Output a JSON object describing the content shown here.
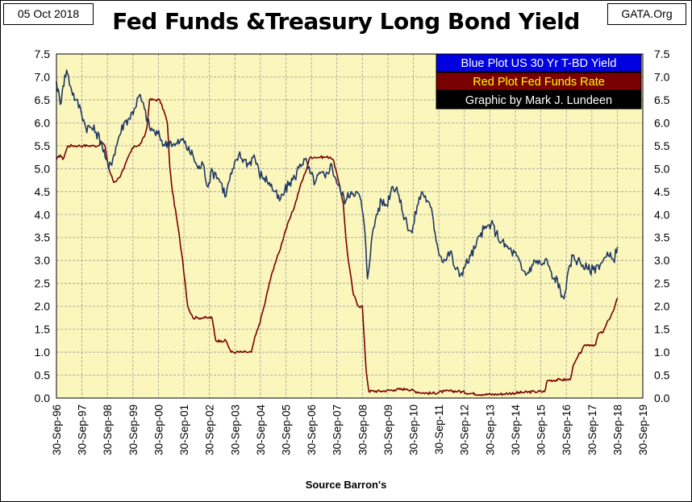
{
  "header": {
    "date": "05 Oct 2018",
    "brand": "GATA.Org"
  },
  "chart_data": {
    "type": "line",
    "title": "Fed Funds &Treasury Long Bond Yield",
    "xlabel": "Source Barron's",
    "ylabel": "",
    "ylim": [
      0,
      7.5
    ],
    "yticks": [
      "0.0",
      "0.5",
      "1.0",
      "1.5",
      "2.0",
      "2.5",
      "3.0",
      "3.5",
      "4.0",
      "4.5",
      "5.0",
      "5.5",
      "6.0",
      "6.5",
      "7.0",
      "7.5"
    ],
    "xlim": [
      1996.75,
      2019.75
    ],
    "xticks": [
      "30-Sep-96",
      "30-Sep-97",
      "30-Sep-98",
      "30-Sep-99",
      "30-Sep-00",
      "30-Sep-01",
      "30-Sep-02",
      "30-Sep-03",
      "30-Sep-04",
      "30-Sep-05",
      "30-Sep-06",
      "30-Sep-07",
      "30-Sep-08",
      "30-Sep-09",
      "30-Sep-10",
      "30-Sep-11",
      "30-Sep-12",
      "30-Sep-13",
      "30-Sep-14",
      "30-Sep-15",
      "30-Sep-16",
      "30-Sep-17",
      "30-Sep-18",
      "30-Sep-19"
    ],
    "grid": true,
    "background": "#fbf6bc",
    "legend": [
      {
        "text": "Blue Plot  US 30 Yr T-BD Yield",
        "bg": "#0000e0",
        "fg": "#ffffff"
      },
      {
        "text": "Red Plot Fed Funds Rate",
        "bg": "#7a0000",
        "fg": "#ffff00"
      },
      {
        "text": "Graphic by Mark J. Lundeen",
        "bg": "#000000",
        "fg": "#ffffff"
      }
    ],
    "series": [
      {
        "name": "US 30 Yr T-BD Yield",
        "color": "#1f3864",
        "x": [
          1996.75,
          1996.9,
          1997.0,
          1997.15,
          1997.3,
          1997.5,
          1997.7,
          1997.9,
          1998.1,
          1998.3,
          1998.5,
          1998.7,
          1998.8,
          1999.0,
          1999.2,
          1999.4,
          1999.6,
          1999.8,
          2000.0,
          2000.2,
          2000.4,
          2000.6,
          2000.8,
          2001.0,
          2001.2,
          2001.4,
          2001.6,
          2001.8,
          2001.9,
          2002.1,
          2002.3,
          2002.5,
          2002.7,
          2002.8,
          2003.0,
          2003.2,
          2003.4,
          2003.5,
          2003.7,
          2003.9,
          2004.1,
          2004.3,
          2004.5,
          2004.7,
          2004.9,
          2005.1,
          2005.3,
          2005.5,
          2005.7,
          2005.9,
          2006.1,
          2006.3,
          2006.5,
          2006.7,
          2006.9,
          2007.1,
          2007.3,
          2007.5,
          2007.7,
          2007.9,
          2008.1,
          2008.3,
          2008.5,
          2008.7,
          2008.85,
          2008.95,
          2009.1,
          2009.3,
          2009.5,
          2009.7,
          2009.9,
          2010.1,
          2010.3,
          2010.5,
          2010.7,
          2010.9,
          2011.1,
          2011.3,
          2011.5,
          2011.6,
          2011.8,
          2012.0,
          2012.2,
          2012.4,
          2012.6,
          2012.8,
          2013.0,
          2013.2,
          2013.4,
          2013.6,
          2013.8,
          2014.0,
          2014.2,
          2014.4,
          2014.6,
          2014.8,
          2015.0,
          2015.2,
          2015.4,
          2015.6,
          2015.8,
          2016.0,
          2016.2,
          2016.4,
          2016.55,
          2016.7,
          2016.9,
          2017.0,
          2017.2,
          2017.4,
          2017.6,
          2017.8,
          2018.0,
          2018.2,
          2018.4,
          2018.6,
          2018.76
        ],
        "y": [
          6.9,
          6.4,
          6.8,
          7.15,
          6.8,
          6.5,
          6.3,
          5.9,
          5.9,
          5.8,
          5.6,
          5.2,
          5.0,
          5.3,
          5.7,
          6.0,
          6.1,
          6.3,
          6.6,
          6.3,
          5.9,
          5.8,
          5.7,
          5.5,
          5.6,
          5.5,
          5.6,
          5.6,
          5.4,
          5.3,
          5.0,
          5.1,
          4.6,
          4.9,
          4.9,
          4.7,
          4.4,
          4.7,
          5.0,
          5.3,
          5.2,
          5.1,
          5.3,
          4.9,
          4.8,
          4.7,
          4.5,
          4.3,
          4.5,
          4.7,
          4.8,
          5.1,
          5.2,
          4.9,
          4.7,
          4.9,
          4.8,
          5.1,
          4.8,
          4.5,
          4.3,
          4.5,
          4.5,
          4.3,
          3.6,
          2.6,
          3.4,
          4.0,
          4.3,
          4.2,
          4.6,
          4.6,
          4.1,
          3.8,
          3.6,
          4.2,
          4.5,
          4.3,
          4.0,
          3.6,
          3.1,
          3.0,
          3.2,
          2.8,
          2.7,
          2.9,
          3.1,
          3.3,
          3.6,
          3.7,
          3.8,
          3.6,
          3.4,
          3.3,
          3.2,
          3.1,
          2.8,
          2.7,
          2.9,
          3.0,
          2.9,
          3.0,
          2.6,
          2.6,
          2.2,
          2.3,
          2.9,
          3.1,
          3.0,
          2.9,
          2.8,
          2.8,
          2.9,
          3.0,
          3.1,
          3.0,
          3.3
        ]
      },
      {
        "name": "Fed Funds Rate",
        "color": "#7a0000",
        "x": [
          1996.75,
          1996.9,
          1997.0,
          1997.2,
          1997.4,
          1997.6,
          1997.8,
          1998.0,
          1998.2,
          1998.4,
          1998.5,
          1998.65,
          1998.8,
          1999.0,
          1999.2,
          1999.4,
          1999.6,
          1999.8,
          2000.0,
          2000.2,
          2000.3,
          2000.4,
          2000.6,
          2000.8,
          2001.0,
          2001.1,
          2001.2,
          2001.3,
          2001.5,
          2001.7,
          2001.9,
          2002.1,
          2002.3,
          2002.5,
          2002.7,
          2002.85,
          2003.0,
          2003.2,
          2003.4,
          2003.6,
          2003.8,
          2004.0,
          2004.2,
          2004.4,
          2004.5,
          2004.7,
          2004.9,
          2005.1,
          2005.3,
          2005.5,
          2005.7,
          2005.9,
          2006.1,
          2006.3,
          2006.5,
          2006.7,
          2006.9,
          2007.1,
          2007.3,
          2007.5,
          2007.6,
          2007.7,
          2007.8,
          2007.9,
          2008.0,
          2008.1,
          2008.2,
          2008.4,
          2008.6,
          2008.75,
          2008.8,
          2008.9,
          2009.0,
          2009.5,
          2010.0,
          2010.5,
          2011.0,
          2011.5,
          2012.0,
          2012.5,
          2013.0,
          2013.5,
          2014.0,
          2014.5,
          2015.0,
          2015.5,
          2015.9,
          2016.0,
          2016.5,
          2016.9,
          2017.0,
          2017.2,
          2017.5,
          2017.7,
          2017.9,
          2018.0,
          2018.2,
          2018.4,
          2018.6,
          2018.76
        ],
        "y": [
          5.2,
          5.3,
          5.2,
          5.5,
          5.5,
          5.5,
          5.5,
          5.5,
          5.5,
          5.5,
          5.6,
          5.5,
          5.0,
          4.7,
          4.8,
          5.0,
          5.3,
          5.5,
          5.5,
          5.7,
          5.9,
          6.5,
          6.5,
          6.5,
          6.2,
          6.0,
          5.0,
          4.5,
          3.8,
          3.0,
          2.0,
          1.75,
          1.75,
          1.75,
          1.75,
          1.75,
          1.25,
          1.25,
          1.25,
          1.0,
          1.0,
          1.0,
          1.0,
          1.0,
          1.25,
          1.6,
          2.0,
          2.5,
          2.9,
          3.2,
          3.6,
          3.9,
          4.2,
          4.6,
          4.9,
          5.25,
          5.25,
          5.25,
          5.25,
          5.25,
          5.2,
          5.0,
          4.75,
          4.5,
          4.25,
          3.5,
          3.0,
          2.25,
          2.0,
          2.0,
          1.5,
          0.6,
          0.15,
          0.15,
          0.18,
          0.2,
          0.12,
          0.1,
          0.15,
          0.15,
          0.1,
          0.08,
          0.08,
          0.1,
          0.12,
          0.14,
          0.14,
          0.38,
          0.4,
          0.4,
          0.66,
          0.9,
          1.16,
          1.16,
          1.16,
          1.4,
          1.44,
          1.7,
          1.9,
          2.18
        ]
      }
    ]
  }
}
